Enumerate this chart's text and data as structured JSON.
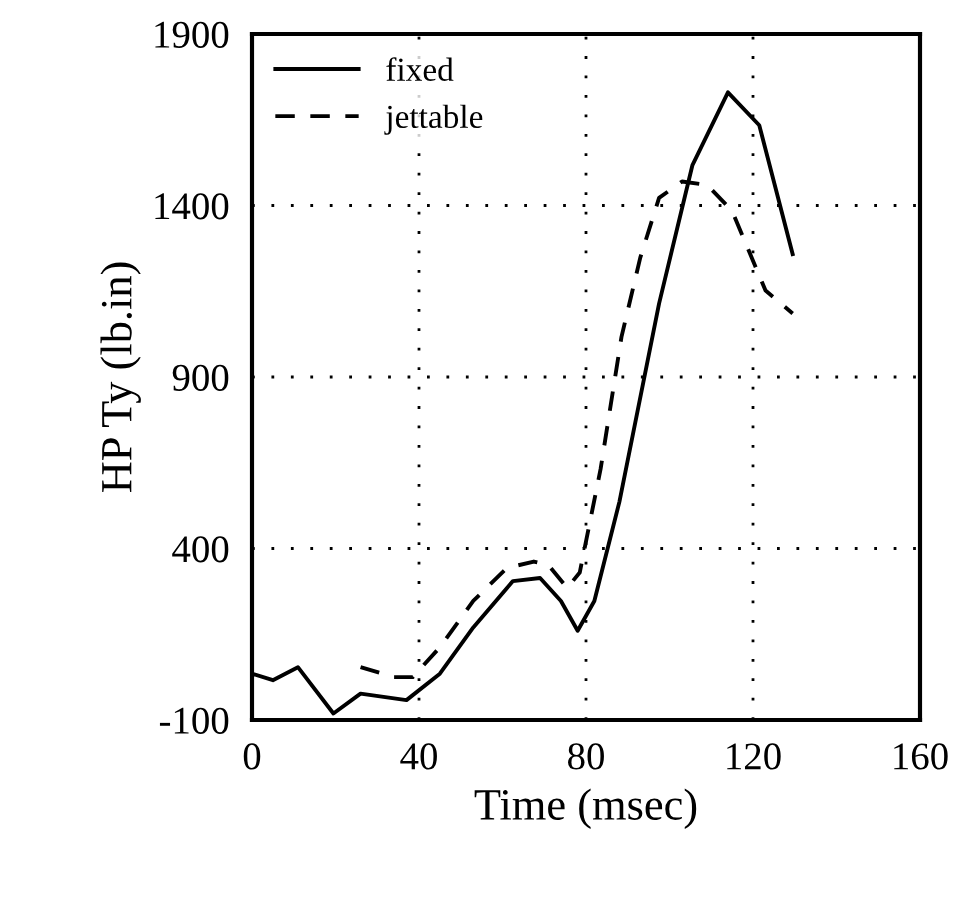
{
  "chart_data": {
    "type": "line",
    "xlabel": "Time (msec)",
    "ylabel": "HP Ty (lb.in)",
    "xlim": [
      0,
      160
    ],
    "ylim": [
      -100,
      1900
    ],
    "xticks": [
      0,
      40,
      80,
      120,
      160
    ],
    "yticks": [
      -100,
      400,
      900,
      1400,
      1900
    ],
    "grid": true,
    "legend": "top left",
    "series": [
      {
        "name": "fixed",
        "color": "#000000",
        "line_style": "solid",
        "x": [
          0,
          5,
          11,
          19.5,
          26,
          37,
          45,
          53,
          62.5,
          69,
          74,
          78,
          82,
          88,
          97.5,
          105.5,
          114,
          121.5,
          129.5
        ],
        "values": [
          35,
          16,
          54,
          -81,
          -23,
          -42,
          35,
          170,
          305,
          314,
          247,
          160,
          247,
          536,
          1114,
          1518,
          1730,
          1634,
          1258
        ]
      },
      {
        "name": "jettable",
        "color": "#000000",
        "line_style": "dashed",
        "x": [
          26,
          34,
          38.5,
          45,
          53,
          61,
          67.5,
          71,
          75.5,
          78.5,
          83.5,
          88.5,
          93,
          97.5,
          103,
          109,
          115,
          123,
          129.5
        ],
        "values": [
          54,
          25,
          25,
          112,
          247,
          343,
          362,
          352,
          285,
          330,
          632,
          1017,
          1248,
          1422,
          1470,
          1460,
          1384,
          1152,
          1085
        ]
      }
    ]
  }
}
